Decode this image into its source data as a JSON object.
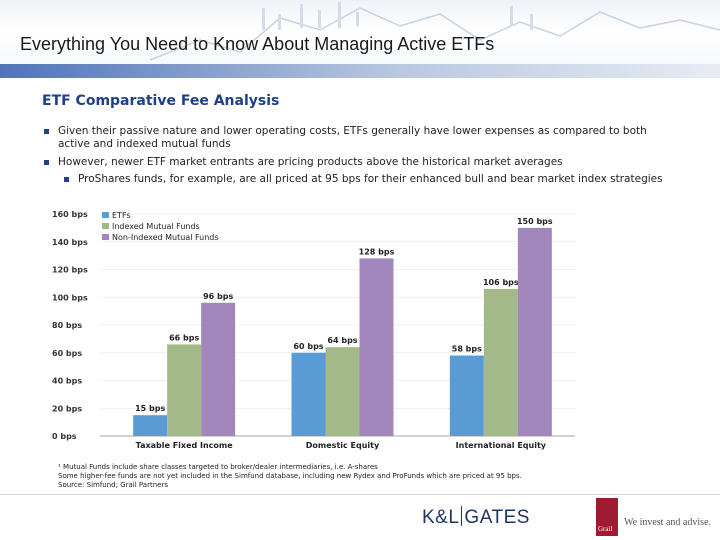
{
  "header": {
    "title": "Everything You Need to Know About Managing Active ETFs"
  },
  "section_title": "ETF Comparative Fee Analysis",
  "bullets": [
    "Given their passive nature and lower operating costs, ETFs generally have lower expenses as compared to both active and indexed mutual funds",
    "However, newer ETF market entrants are pricing products above the historical market averages",
    "ProShares funds, for example, are all priced at 95 bps for their enhanced bull and bear market index strategies"
  ],
  "chart_data": {
    "type": "bar",
    "title": "",
    "xlabel": "",
    "ylabel": "",
    "ylim": [
      0,
      160
    ],
    "yticks": [
      "0 bps",
      "20 bps",
      "40 bps",
      "60 bps",
      "80 bps",
      "100 bps",
      "120 bps",
      "140 bps",
      "160 bps"
    ],
    "categories": [
      "Taxable Fixed Income",
      "Domestic Equity",
      "International Equity"
    ],
    "legend_position": "top-left",
    "series": [
      {
        "name": "ETFs",
        "color": "#5b9bd5",
        "values": [
          15,
          60,
          58
        ],
        "labels": [
          "15 bps",
          "60 bps",
          "58 bps"
        ]
      },
      {
        "name": "Indexed Mutual Funds",
        "color": "#a3b98a",
        "values": [
          66,
          64,
          106
        ],
        "labels": [
          "66 bps",
          "64 bps",
          "106 bps"
        ]
      },
      {
        "name": "Non-Indexed Mutual Funds",
        "color": "#a287bd",
        "values": [
          96,
          128,
          150
        ],
        "labels": [
          "96 bps",
          "128 bps",
          "150 bps"
        ]
      }
    ]
  },
  "footnotes": [
    "¹ Mutual Funds include share classes targeted to broker/dealer intermediaries, i.e. A-shares",
    "Some higher-fee funds are not yet included in the Simfund database, including new Rydex and ProFunds which are priced at 95 bps.",
    "Source: Simfund; Grail Partners"
  ],
  "branding": {
    "klgates_left": "K&L",
    "klgates_right": "GATES",
    "grail_mark": "Grail",
    "grail_tagline": "We invest and advise."
  }
}
